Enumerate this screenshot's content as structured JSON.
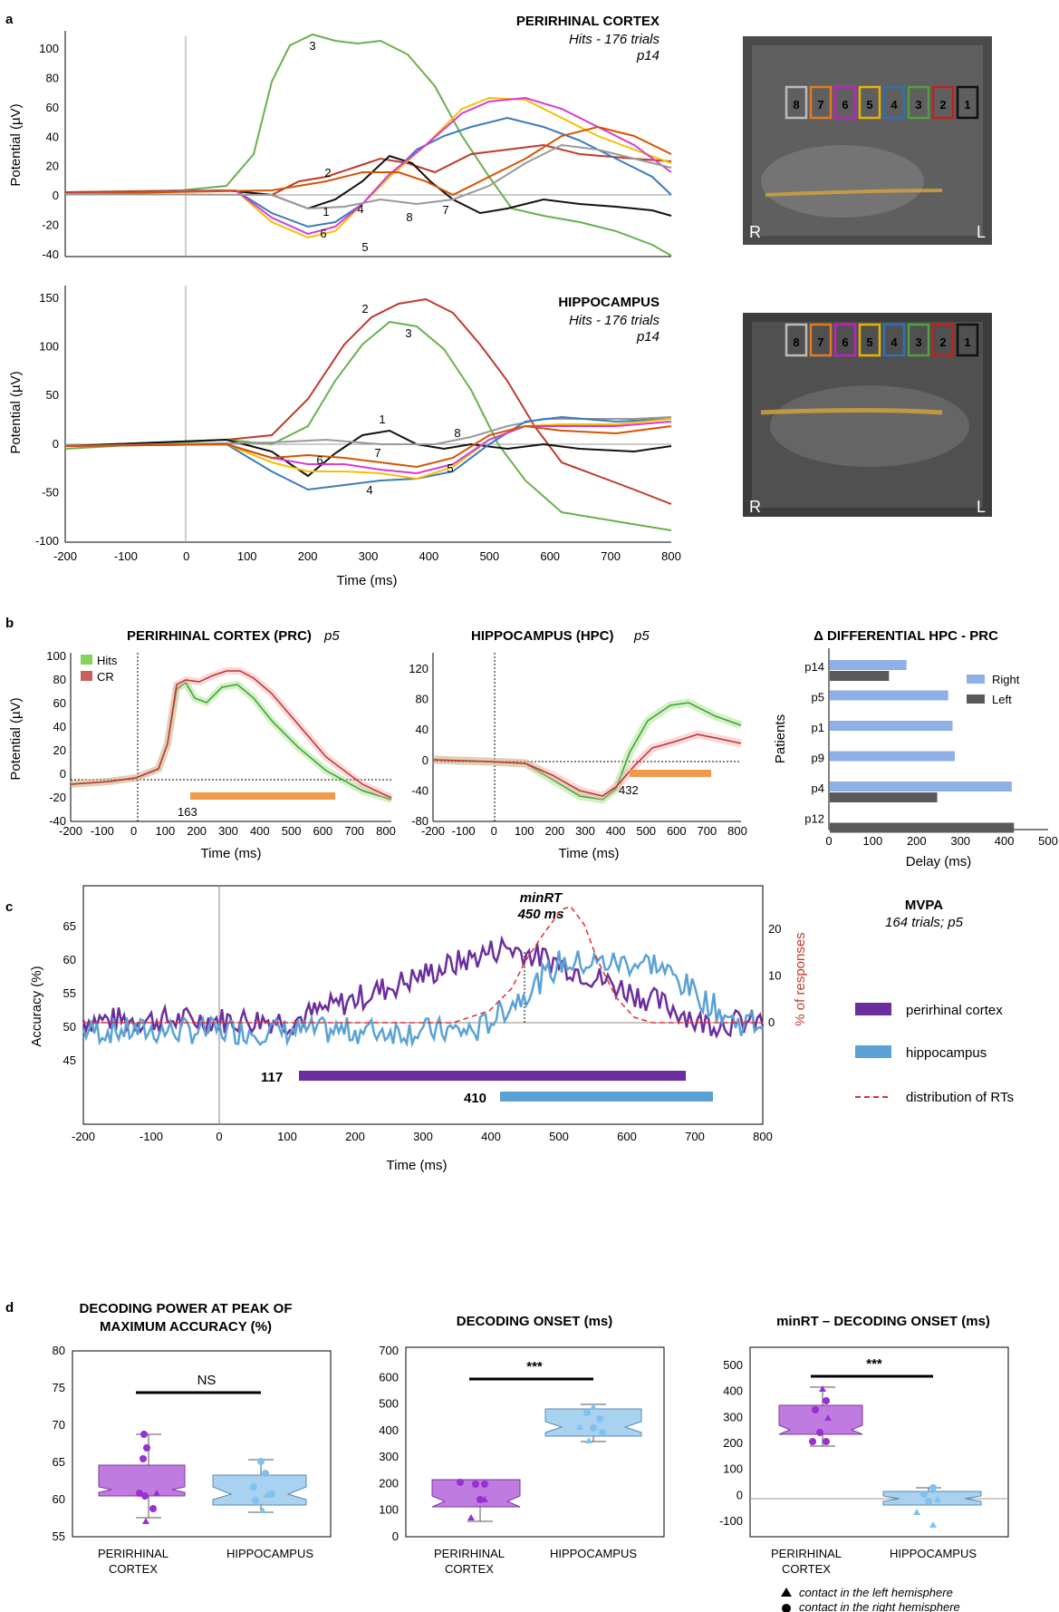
{
  "panels": {
    "a": "a",
    "b": "b",
    "c": "c",
    "d": "d"
  },
  "panel_a": {
    "top": {
      "title": "PERIRHINAL CORTEX",
      "subtitle1": "Hits - 176 trials",
      "subtitle2": "p14",
      "ylabel": "Potential (µV)",
      "yticks": [
        "-40",
        "-20",
        "0",
        "20",
        "40",
        "60",
        "80",
        "100"
      ],
      "labels": [
        "1",
        "2",
        "3",
        "4",
        "5",
        "6",
        "7",
        "8"
      ]
    },
    "bottom": {
      "title": "HIPPOCAMPUS",
      "subtitle1": "Hits - 176 trials",
      "subtitle2": "p14",
      "ylabel": "Potential (µV)",
      "yticks": [
        "-100",
        "-50",
        "0",
        "50",
        "100",
        "150"
      ],
      "labels": [
        "1",
        "2",
        "3",
        "4",
        "5",
        "6",
        "7",
        "8"
      ]
    },
    "xlabel": "Time (ms)",
    "xticks": [
      "-200",
      "-100",
      "0",
      "100",
      "200",
      "300",
      "400",
      "500",
      "600",
      "700",
      "800"
    ],
    "mri": {
      "contacts": [
        "8",
        "7",
        "6",
        "5",
        "4",
        "3",
        "2",
        "1"
      ],
      "left_label": "R",
      "right_label": "L",
      "contact_colors": [
        "#bbbbbb",
        "#e07b20",
        "#c020c0",
        "#e8b400",
        "#3070b0",
        "#50a040",
        "#c02020",
        "#111111"
      ]
    }
  },
  "panel_b": {
    "prc": {
      "title": "PERIRHINAL CORTEX (PRC)",
      "title_suffix": "p5",
      "ylabel": "Potential (µV)",
      "yticks": [
        "-40",
        "-20",
        "0",
        "20",
        "40",
        "60",
        "80",
        "100"
      ],
      "xticks": [
        "-200",
        "-100",
        "0",
        "100",
        "200",
        "300",
        "400",
        "500",
        "600",
        "700",
        "800"
      ],
      "xlabel": "Time (ms)",
      "legend": [
        "Hits",
        "CR"
      ],
      "onset": "163"
    },
    "hpc": {
      "title": "HIPPOCAMPUS (HPC)",
      "title_suffix": "p5",
      "yticks": [
        "-80",
        "-40",
        "0",
        "40",
        "80",
        "120"
      ],
      "xticks": [
        "-200",
        "-100",
        "0",
        "100",
        "200",
        "300",
        "400",
        "500",
        "600",
        "700",
        "800"
      ],
      "xlabel": "Time (ms)",
      "onset": "432"
    },
    "diff": {
      "title": "Δ DIFFERENTIAL HPC - PRC",
      "ylabel": "Patients",
      "xlabel": "Delay (ms)",
      "xticks": [
        "0",
        "100",
        "200",
        "300",
        "400",
        "500"
      ],
      "legend": [
        "Right",
        "Left"
      ]
    }
  },
  "panel_c": {
    "title": "MVPA",
    "subtitle": "164 trials; p5",
    "ylabel": "Accuracy (%)",
    "y2label": "% of responses",
    "yticks": [
      "45",
      "50",
      "55",
      "60",
      "65"
    ],
    "y2ticks": [
      "0",
      "10",
      "20"
    ],
    "xticks": [
      "-200",
      "-100",
      "0",
      "100",
      "200",
      "300",
      "400",
      "500",
      "600",
      "700",
      "800"
    ],
    "xlabel": "Time (ms)",
    "minrt_label": "minRT",
    "minrt_value": "450 ms",
    "onset_prc": "117",
    "onset_hpc": "410",
    "legend": [
      "perirhinal cortex",
      "hippocampus",
      "distribution of RTs"
    ]
  },
  "panel_d": {
    "p1": {
      "title1": "DECODING POWER AT PEAK OF",
      "title2": "MAXIMUM ACCURACY (%)",
      "yticks": [
        "55",
        "60",
        "65",
        "70",
        "75",
        "80"
      ],
      "sig": "NS"
    },
    "p2": {
      "title1": "DECODING ONSET (ms)",
      "yticks": [
        "0",
        "100",
        "200",
        "300",
        "400",
        "500",
        "600",
        "700"
      ],
      "sig": "***"
    },
    "p3": {
      "title1": "minRT – DECODING ONSET (ms)",
      "yticks": [
        "-100",
        "0",
        "100",
        "200",
        "300",
        "400",
        "500"
      ],
      "sig": "***"
    },
    "cat1a": "PERIRHINAL",
    "cat1b": "CORTEX",
    "cat2": "HIPPOCAMPUS",
    "note_left": "contact in the left hemisphere",
    "note_right": "contact in the right hemisphere"
  },
  "chart_data": [
    {
      "type": "bar",
      "title": "Δ DIFFERENTIAL HPC - PRC",
      "ylabel": "Patients",
      "xlabel": "Delay (ms)",
      "categories": [
        "p14",
        "p5",
        "p1",
        "p9",
        "p4",
        "p12"
      ],
      "series": [
        {
          "name": "Right",
          "values": [
            175,
            270,
            280,
            285,
            415,
            null
          ]
        },
        {
          "name": "Left",
          "values": [
            135,
            null,
            null,
            null,
            245,
            420
          ]
        }
      ],
      "xlim": [
        0,
        500
      ]
    },
    {
      "type": "line",
      "title": "MVPA",
      "xlabel": "Time (ms)",
      "ylabel": "Accuracy (%)",
      "xlim": [
        -200,
        800
      ],
      "ylim": [
        43,
        68
      ],
      "series": [
        {
          "name": "perirhinal cortex",
          "onset": 117,
          "significant_until": 685
        },
        {
          "name": "hippocampus",
          "onset": 410,
          "significant_until": 725
        },
        {
          "name": "distribution of RTs",
          "peak_x": 510,
          "peak_y": 20
        }
      ],
      "minRT": 450
    }
  ]
}
